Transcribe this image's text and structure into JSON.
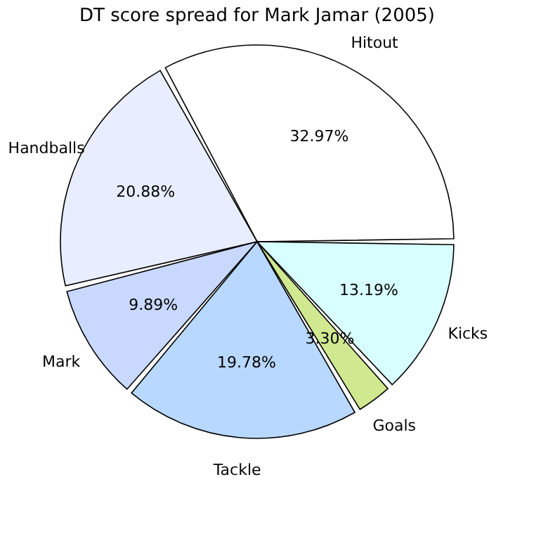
{
  "chart_data": {
    "type": "pie",
    "title": "DT score spread for Mark Jamar (2005)",
    "categories": [
      "Hitout",
      "Handballs",
      "Mark",
      "Tackle",
      "Goals",
      "Kicks"
    ],
    "values": [
      32.97,
      20.88,
      9.89,
      19.78,
      3.3,
      13.19
    ],
    "value_labels": [
      "32.97%",
      "20.88%",
      "9.89%",
      "19.78%",
      "3.30%",
      "13.19%"
    ],
    "colors": [
      "#ffffff",
      "#e8eeff",
      "#c8d8ff",
      "#b8d8ff",
      "#d0e890",
      "#d8ffff"
    ],
    "legend": false
  }
}
